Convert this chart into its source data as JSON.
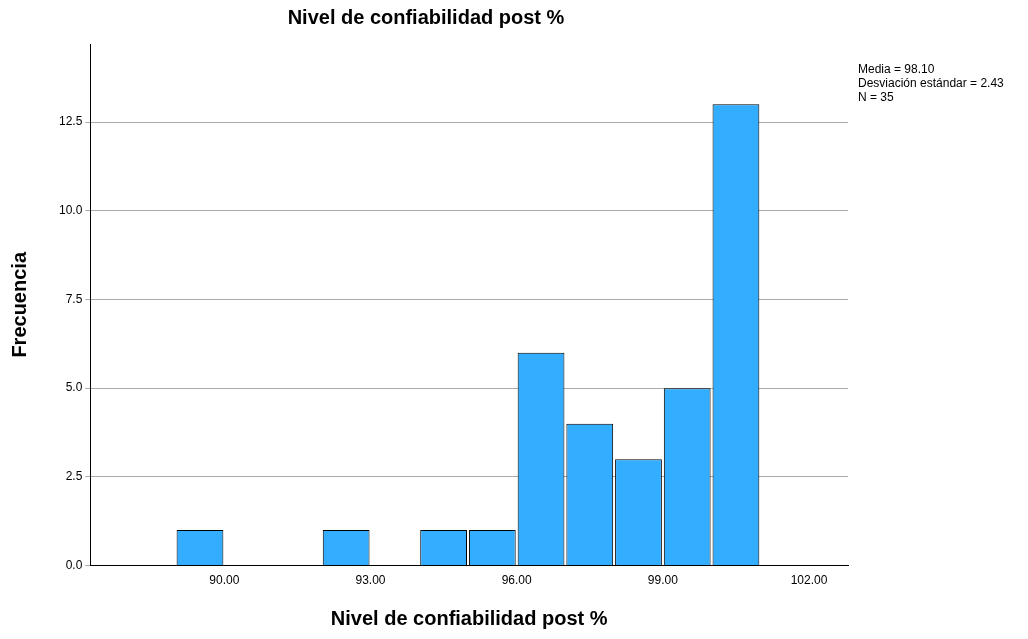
{
  "chart_data": {
    "type": "histogram",
    "title": "Nivel de confiabilidad post %",
    "xlabel": "Nivel de confiabilidad post %",
    "ylabel": "Frecuencia",
    "bins": [
      89,
      90,
      91,
      92,
      93,
      94,
      95,
      96,
      97,
      98,
      99,
      100,
      101
    ],
    "values": [
      1,
      0,
      0,
      1,
      0,
      1,
      1,
      6,
      4,
      3,
      5,
      13
    ],
    "color": "#33adff",
    "xlim": [
      87.25,
      102.8
    ],
    "xticks": [
      {
        "value": 90,
        "label": "90.00"
      },
      {
        "value": 93,
        "label": "93.00"
      },
      {
        "value": 96,
        "label": "96.00"
      },
      {
        "value": 99,
        "label": "99.00"
      },
      {
        "value": 102,
        "label": "102.00"
      }
    ],
    "ylim": [
      0,
      14.7
    ],
    "yticks": [
      {
        "value": 0,
        "label": "0.0"
      },
      {
        "value": 2.5,
        "label": "2.5"
      },
      {
        "value": 5,
        "label": "5.0"
      },
      {
        "value": 7.5,
        "label": "7.5"
      },
      {
        "value": 10,
        "label": "10.0"
      },
      {
        "value": 12.5,
        "label": "12.5"
      }
    ],
    "grid": "y",
    "annotations": [
      "Media = 98.10",
      "Desviación estándar = 2.43",
      "N = 35"
    ]
  }
}
